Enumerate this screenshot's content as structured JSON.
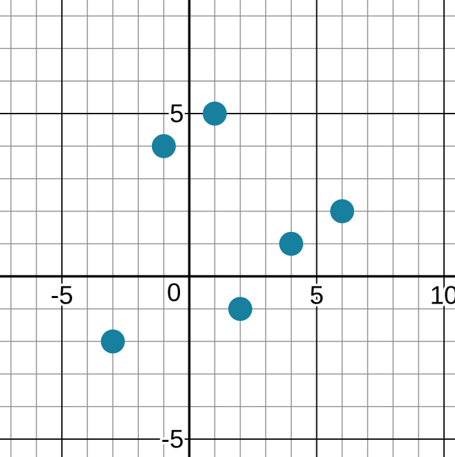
{
  "chart_data": {
    "type": "scatter",
    "title": "",
    "xlabel": "",
    "ylabel": "",
    "grid": true,
    "points": [
      {
        "x": -3,
        "y": -2
      },
      {
        "x": -1,
        "y": 4
      },
      {
        "x": 1,
        "y": 5
      },
      {
        "x": 2,
        "y": -1
      },
      {
        "x": 4,
        "y": 1
      },
      {
        "x": 6,
        "y": 2
      }
    ],
    "point_color": "#17809e",
    "point_radius": 17.5,
    "x_axis": {
      "min": -7.43,
      "max": 10.43,
      "grid_step": 1,
      "major_step": 5,
      "tick_labels": [
        {
          "value": -5,
          "label": "-5"
        },
        {
          "value": 0,
          "label": "0"
        },
        {
          "value": 5,
          "label": "5"
        },
        {
          "value": 10,
          "label": "10"
        }
      ]
    },
    "y_axis": {
      "min": -5.55,
      "max": 8.49,
      "grid_step": 1,
      "major_step": 5,
      "tick_labels": [
        {
          "value": 5,
          "label": "5"
        },
        {
          "value": -5,
          "label": "-5"
        }
      ]
    },
    "colors": {
      "background": "#ffffff",
      "minor_grid": "#8c8c8c",
      "major_grid": "#111111",
      "axis": "#000000",
      "label": "#000000",
      "label_halo": "#ffffff"
    },
    "label_font_size": 37
  }
}
